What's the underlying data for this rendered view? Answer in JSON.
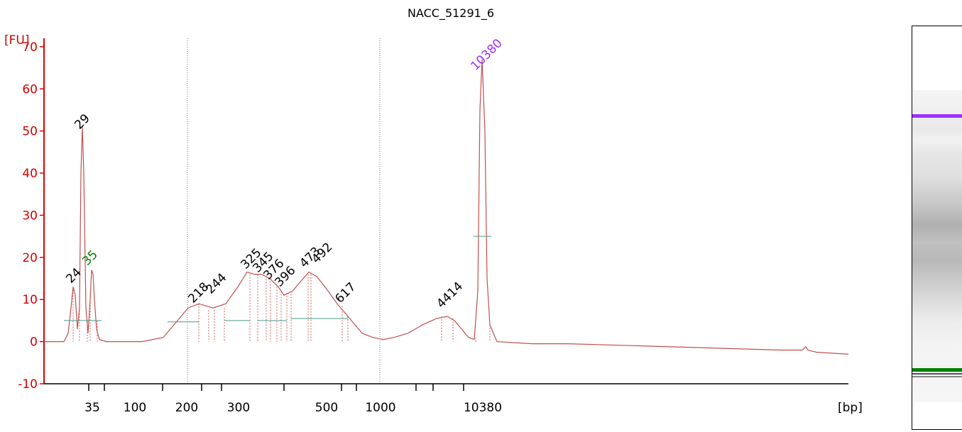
{
  "chart_data": {
    "type": "line",
    "title": "NACC_51291_6",
    "ylabel": "[FU]",
    "xlabel": "[bp]",
    "ylim": [
      -10,
      72
    ],
    "yticks": [
      -10,
      0,
      10,
      20,
      30,
      40,
      50,
      60,
      70
    ],
    "xtick_labels": [
      "35",
      "100",
      "200",
      "300",
      "500",
      "1000",
      "10380"
    ],
    "series_color": "#c0504d",
    "peak_labels": [
      {
        "text": "29",
        "color": "#000000"
      },
      {
        "text": "24",
        "color": "#000000"
      },
      {
        "text": "35",
        "color": "#008000"
      },
      {
        "text": "218",
        "color": "#000000"
      },
      {
        "text": "244",
        "color": "#000000"
      },
      {
        "text": "325",
        "color": "#000000"
      },
      {
        "text": "345",
        "color": "#000000"
      },
      {
        "text": "376",
        "color": "#000000"
      },
      {
        "text": "396",
        "color": "#000000"
      },
      {
        "text": "473",
        "color": "#000000"
      },
      {
        "text": "492",
        "color": "#000000"
      },
      {
        "text": "617",
        "color": "#000000"
      },
      {
        "text": "4414",
        "color": "#000000"
      },
      {
        "text": "10380",
        "color": "#9b30ff"
      }
    ],
    "marker_colors": {
      "upper": "#9b30ff",
      "lower": "#008000"
    }
  }
}
